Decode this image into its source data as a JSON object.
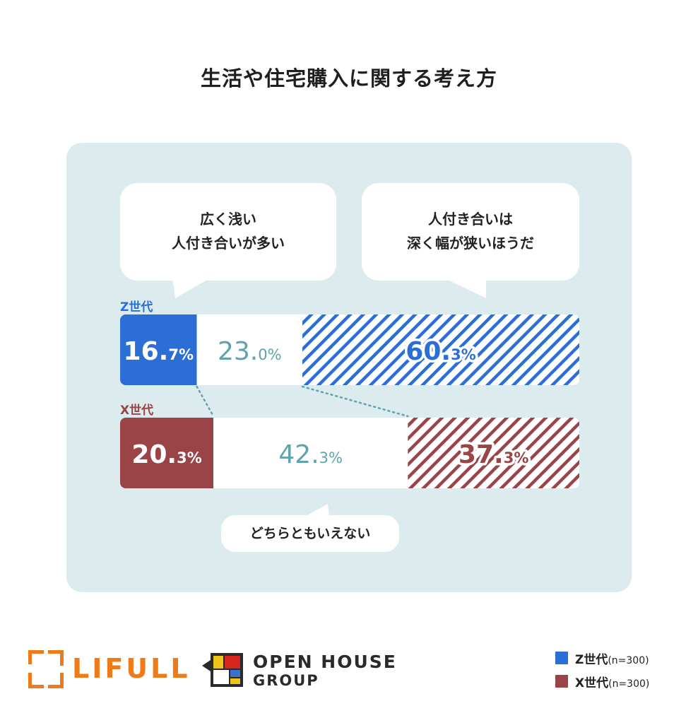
{
  "title": "生活や住宅購入に関する考え方",
  "bubbles": {
    "left": [
      "広く浅い",
      "人付き合いが多い"
    ],
    "right": [
      "人付き合いは",
      "深く幅が狭いほうだ"
    ],
    "bottom": "どちらともいえない"
  },
  "chart_data": {
    "type": "bar",
    "orientation": "horizontal-stacked-100",
    "categories": [
      "広く浅い人付き合いが多い",
      "どちらともいえない",
      "人付き合いは深く幅が狭いほうだ"
    ],
    "series": [
      {
        "name": "Z世代",
        "values": [
          16.7,
          23.0,
          60.3
        ],
        "labels": [
          [
            "16.",
            "7%"
          ],
          [
            "23.",
            "0%"
          ],
          [
            "60.",
            "3%"
          ]
        ]
      },
      {
        "name": "X世代",
        "values": [
          20.3,
          42.3,
          37.3
        ],
        "labels": [
          [
            "20.",
            "3%"
          ],
          [
            "42.",
            "3%"
          ],
          [
            "37.",
            "3%"
          ]
        ]
      }
    ],
    "colors": {
      "z": "#2b6fd6",
      "x": "#9a4448",
      "middle_text": "#5fa3ad",
      "white": "#ffffff"
    }
  },
  "legend": [
    {
      "label": "Z世代",
      "n": "(n=300)",
      "color": "#2b6fd6"
    },
    {
      "label": "X世代",
      "n": "(n=300)",
      "color": "#9a4448"
    }
  ],
  "logos": {
    "lifull": "LIFULL",
    "openhouse_line1": "OPEN HOUSE",
    "openhouse_line2": "GROUP"
  }
}
